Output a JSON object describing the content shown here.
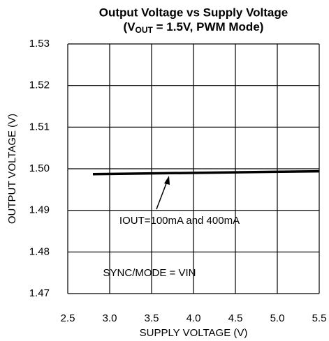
{
  "chart_data": {
    "type": "line",
    "title": "Output Voltage vs Supply Voltage",
    "subtitle_parts": [
      "(V",
      "OUT",
      " = 1.5V, PWM Mode)"
    ],
    "xlabel": "SUPPLY VOLTAGE (V)",
    "ylabel": "OUTPUT VOLTAGE (V)",
    "x": [
      2.8,
      5.5
    ],
    "series": [
      {
        "name": "IOUT=100mA and 400mA",
        "color": "#000000",
        "values": [
          1.4987,
          1.4994
        ]
      }
    ],
    "annotations": [
      "IOUT=100mA and 400mA",
      "SYNC/MODE = VIN"
    ],
    "xlim": [
      2.5,
      5.5
    ],
    "xticks": [
      2.5,
      {
        "value": 3.0,
        "label": "3.0"
      },
      3.5,
      {
        "value": 4.0,
        "label": "4.0"
      },
      4.5,
      {
        "value": 5.0,
        "label": "5.0"
      },
      5.5
    ],
    "ylim": [
      1.47,
      1.53
    ],
    "yticks": [
      1.47,
      1.48,
      1.49,
      {
        "value": 1.5,
        "label": "1.50"
      },
      1.51,
      1.52,
      1.53
    ],
    "grid": true
  }
}
